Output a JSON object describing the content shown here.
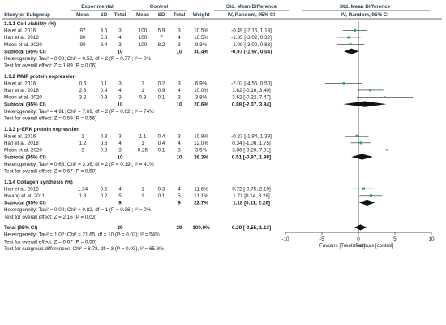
{
  "header": {
    "study_label": "Study or Subgroup",
    "experimental": "Experimental",
    "control": "Control",
    "std_mean_diff": "Std. Mean Difference",
    "std_mean_diff_plot": "Std. Mean Difference",
    "method": "IV, Random, 95% CI",
    "method_plot": "IV, Random, 95% CI",
    "cols": {
      "mean": "Mean",
      "sd": "SD",
      "total": "Total",
      "weight": "Weight"
    }
  },
  "colors": {
    "study_square": "#3aa64a",
    "diamond": "#111111",
    "header_text": "#2c3e50"
  },
  "chart_data": {
    "type": "forest",
    "xlim": [
      -10,
      10
    ],
    "ticks": [
      -10,
      -5,
      0,
      5,
      10
    ],
    "tick_labels": [
      "-10",
      "-5",
      "0",
      "5",
      "10"
    ],
    "favours_left": "Favours [Treatment]",
    "favours_right": "Favours [control]",
    "subgroups": [
      {
        "name": "1.1.1 Cell viability (%)",
        "studies": [
          {
            "name": "Ha et al. 2016",
            "em": "97",
            "esd": "3.5",
            "en": "3",
            "cm": "100",
            "csd": "5.9",
            "cn": "3",
            "weight": "10.5%",
            "ci_text": "-0.49 [-2.16, 1.18]",
            "smd": -0.49,
            "lo": -2.16,
            "hi": 1.18,
            "wt": 10.5
          },
          {
            "name": "Han et al. 2018",
            "em": "90",
            "esd": "5.8",
            "en": "4",
            "cm": "100",
            "csd": "7",
            "cn": "4",
            "weight": "10.5%",
            "ci_text": "-1.35 [-3.02, 0.32]",
            "smd": -1.35,
            "lo": -3.02,
            "hi": 0.32,
            "wt": 10.5
          },
          {
            "name": "Moon et al. 2020",
            "em": "90",
            "esd": "6.4",
            "en": "3",
            "cm": "100",
            "csd": "8.2",
            "cn": "3",
            "weight": "9.3%",
            "ci_text": "-1.09 [-3.00, 0.83]",
            "smd": -1.09,
            "lo": -3.0,
            "hi": 0.83,
            "wt": 9.3
          }
        ],
        "subtotal": {
          "label": "Subtotal (95% CI)",
          "en": "10",
          "cn": "10",
          "weight": "30.4%",
          "ci_text": "-0.97 [-1.97, 0.04]",
          "smd": -0.97,
          "lo": -1.97,
          "hi": 0.04
        },
        "heterogeneity": "Heterogeneity: Tau² = 0.00; Chi² = 0.53, df = 2 (P = 0.77); I² = 0%",
        "overall": "Test for overall effect: Z = 1.89 (P = 0.06)"
      },
      {
        "name": "1.1.2 MMP protein expression",
        "studies": [
          {
            "name": "Ha et al. 2016",
            "em": "0.6",
            "esd": "0.1",
            "en": "3",
            "cm": "1",
            "csd": "0.2",
            "cn": "3",
            "weight": "6.9%",
            "ci_text": "-2.02 [-4.55, 0.50]",
            "smd": -2.02,
            "lo": -4.55,
            "hi": 0.5,
            "wt": 6.9
          },
          {
            "name": "Han et al. 2018",
            "em": "2.3",
            "esd": "0.4",
            "en": "4",
            "cm": "1",
            "csd": "0.9",
            "cn": "4",
            "weight": "10.0%",
            "ci_text": "1.62 [-0.16, 3.40]",
            "smd": 1.62,
            "lo": -0.16,
            "hi": 3.4,
            "wt": 10.0
          },
          {
            "name": "Moon et al. 2020",
            "em": "3.2",
            "esd": "0.9",
            "en": "3",
            "cm": "0.3",
            "csd": "0.1",
            "cn": "3",
            "weight": "3.8%",
            "ci_text": "3.62 [-0.22, 7.47]",
            "smd": 3.62,
            "lo": -0.22,
            "hi": 7.47,
            "wt": 3.8
          }
        ],
        "subtotal": {
          "label": "Subtotal (95% CI)",
          "en": "10",
          "cn": "10",
          "weight": "20.6%",
          "ci_text": "0.88 [-2.07, 3.84]",
          "smd": 0.88,
          "lo": -2.07,
          "hi": 3.84
        },
        "heterogeneity": "Heterogeneity: Tau² = 4.91; Chi² = 7.69, df = 2 (P = 0.02); I² = 74%",
        "overall": "Test for overall effect: Z = 0.59 (P = 0.56)"
      },
      {
        "name": "1.1.3 p-ERK protein expression",
        "studies": [
          {
            "name": "Ha et al. 2016",
            "em": "1",
            "esd": "0.3",
            "en": "3",
            "cm": "1.1",
            "csd": "0.4",
            "cn": "3",
            "weight": "10.8%",
            "ci_text": "-0.23 [-1.84, 1.39]",
            "smd": -0.23,
            "lo": -1.84,
            "hi": 1.39,
            "wt": 10.8
          },
          {
            "name": "Han et al. 2018",
            "em": "1.2",
            "esd": "0.6",
            "en": "4",
            "cm": "1",
            "csd": "0.4",
            "cn": "4",
            "weight": "12.0%",
            "ci_text": "0.34 [-1.06, 1.75]",
            "smd": 0.34,
            "lo": -1.06,
            "hi": 1.75,
            "wt": 12.0
          },
          {
            "name": "Moon et al. 2020",
            "em": "3",
            "esd": "0.8",
            "en": "3",
            "cm": "0.25",
            "csd": "0.1",
            "cn": "3",
            "weight": "3.5%",
            "ci_text": "3.86 [-0.20, 7.91]",
            "smd": 3.86,
            "lo": -0.2,
            "hi": 7.91,
            "wt": 3.5
          }
        ],
        "subtotal": {
          "label": "Subtotal (95% CI)",
          "en": "10",
          "cn": "10",
          "weight": "26.3%",
          "ci_text": "0.51 [-0.97, 1.98]",
          "smd": 0.51,
          "lo": -0.97,
          "hi": 1.98
        },
        "heterogeneity": "Heterogeneity: Tau² = 0.68; Chi² = 3.36, df = 2 (P = 0.19); I² = 41%",
        "overall": "Test for overall effect: Z = 0.67 (P = 0.50)"
      },
      {
        "name": "1.1.4 Collagen synthesis (%)",
        "studies": [
          {
            "name": "Han et al. 2018",
            "em": "1.34",
            "esd": "0.5",
            "en": "4",
            "cm": "1",
            "csd": "0.3",
            "cn": "4",
            "weight": "11.6%",
            "ci_text": "0.72 [-0.75, 2.19]",
            "smd": 0.72,
            "lo": -0.75,
            "hi": 2.19,
            "wt": 11.6
          },
          {
            "name": "Hwang et al. 2011",
            "em": "1.3",
            "esd": "0.2",
            "en": "5",
            "cm": "1",
            "csd": "0.1",
            "cn": "5",
            "weight": "11.1%",
            "ci_text": "1.71 [0.14, 3.28]",
            "smd": 1.71,
            "lo": 0.14,
            "hi": 3.28,
            "wt": 11.1
          }
        ],
        "subtotal": {
          "label": "Subtotal (95% CI)",
          "en": "9",
          "cn": "9",
          "weight": "22.7%",
          "ci_text": "1.18 [0.11, 2.26]",
          "smd": 1.18,
          "lo": 0.11,
          "hi": 2.26
        },
        "heterogeneity": "Heterogeneity: Tau² = 0.00; Chi² = 0.82, df = 1 (P = 0.36); I² = 0%",
        "overall": "Test for overall effect: Z = 2.16 (P = 0.03)"
      }
    ],
    "total": {
      "label": "Total (95% CI)",
      "en": "39",
      "cn": "39",
      "weight": "100.0%",
      "ci_text": "0.29 [-0.55, 1.13]",
      "smd": 0.29,
      "lo": -0.55,
      "hi": 1.13
    },
    "footer": [
      "Heterogeneity: Tau² = 1.02; Chi² = 21.65, df = 10 (P = 0.02); I² = 54%",
      "Test for overall effect: Z = 0.67 (P = 0.50)",
      "Test for subgroup differences: Chi² = 8.78, df = 3 (P = 0.03), I² = 65.8%"
    ]
  }
}
